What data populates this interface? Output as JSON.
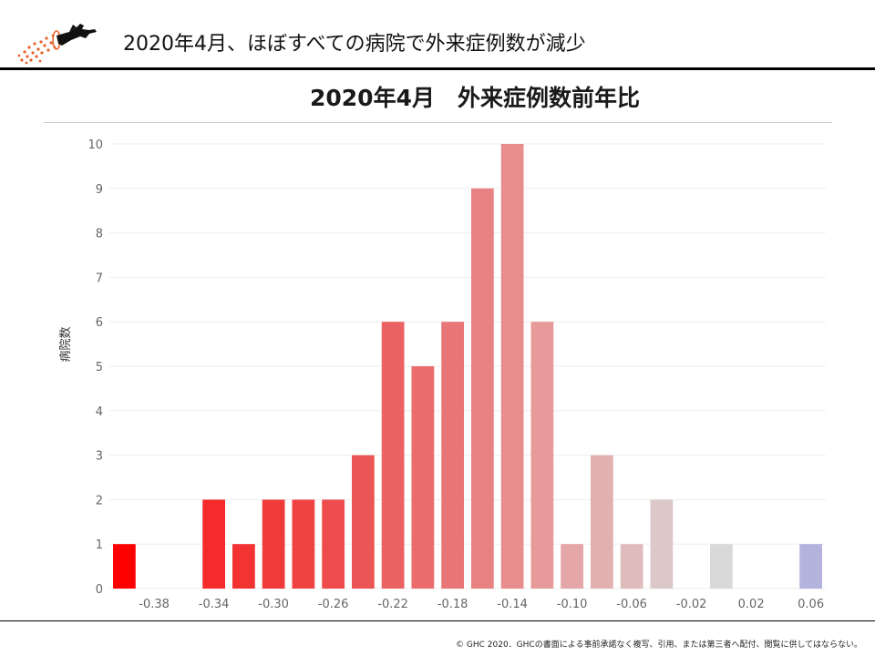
{
  "slide": {
    "title": "2020年4月、ほぼすべての病院で外来症例数が減少"
  },
  "footer": {
    "copyright": "© GHC 2020．GHCの書面による事前承諾なく複写、引用、または第三者へ配付、閲覧に供してはならない。"
  },
  "colors": {
    "header_rule": "#000000",
    "logo_orange": "#e8632b",
    "strong_decrease": "#ff0000",
    "neutral": "#d9d9d9",
    "increase": "#b3b3dd"
  },
  "chart_data": {
    "type": "bar",
    "title": "2020年4月　外来症例数前年比",
    "xlabel": "",
    "ylabel": "病院数",
    "ylim": [
      0,
      10
    ],
    "yticks": [
      0,
      1,
      2,
      3,
      4,
      5,
      6,
      7,
      8,
      9,
      10
    ],
    "xticks": [
      "-0.38",
      "-0.34",
      "-0.30",
      "-0.26",
      "-0.22",
      "-0.18",
      "-0.14",
      "-0.10",
      "-0.06",
      "-0.02",
      "0.02",
      "0.06"
    ],
    "grid": true,
    "bins": [
      {
        "x": -0.4,
        "value": 1,
        "color": "#ff0000"
      },
      {
        "x": -0.38,
        "value": 0,
        "color": "#fb1a1a"
      },
      {
        "x": -0.36,
        "value": 0,
        "color": "#f82424"
      },
      {
        "x": -0.34,
        "value": 2,
        "color": "#f52a2a"
      },
      {
        "x": -0.32,
        "value": 1,
        "color": "#f33232"
      },
      {
        "x": -0.3,
        "value": 2,
        "color": "#f13a3a"
      },
      {
        "x": -0.28,
        "value": 2,
        "color": "#ef4343"
      },
      {
        "x": -0.26,
        "value": 2,
        "color": "#ee4c4c"
      },
      {
        "x": -0.24,
        "value": 3,
        "color": "#ec5555"
      },
      {
        "x": -0.22,
        "value": 6,
        "color": "#eb6262"
      },
      {
        "x": -0.2,
        "value": 5,
        "color": "#ea6c6c"
      },
      {
        "x": -0.18,
        "value": 6,
        "color": "#e97676"
      },
      {
        "x": -0.16,
        "value": 9,
        "color": "#e88282"
      },
      {
        "x": -0.14,
        "value": 10,
        "color": "#e78d8d"
      },
      {
        "x": -0.12,
        "value": 6,
        "color": "#e69a9a"
      },
      {
        "x": -0.1,
        "value": 1,
        "color": "#e4a6a6"
      },
      {
        "x": -0.08,
        "value": 3,
        "color": "#e2b0b0"
      },
      {
        "x": -0.06,
        "value": 1,
        "color": "#dfbcbc"
      },
      {
        "x": -0.04,
        "value": 2,
        "color": "#dcc8c8"
      },
      {
        "x": -0.02,
        "value": 0,
        "color": "#dadada"
      },
      {
        "x": 0.0,
        "value": 1,
        "color": "#d9d9d9"
      },
      {
        "x": 0.02,
        "value": 0,
        "color": "#cfcfe6"
      },
      {
        "x": 0.04,
        "value": 0,
        "color": "#c3c3e3"
      },
      {
        "x": 0.06,
        "value": 1,
        "color": "#b3b3dd"
      }
    ]
  }
}
